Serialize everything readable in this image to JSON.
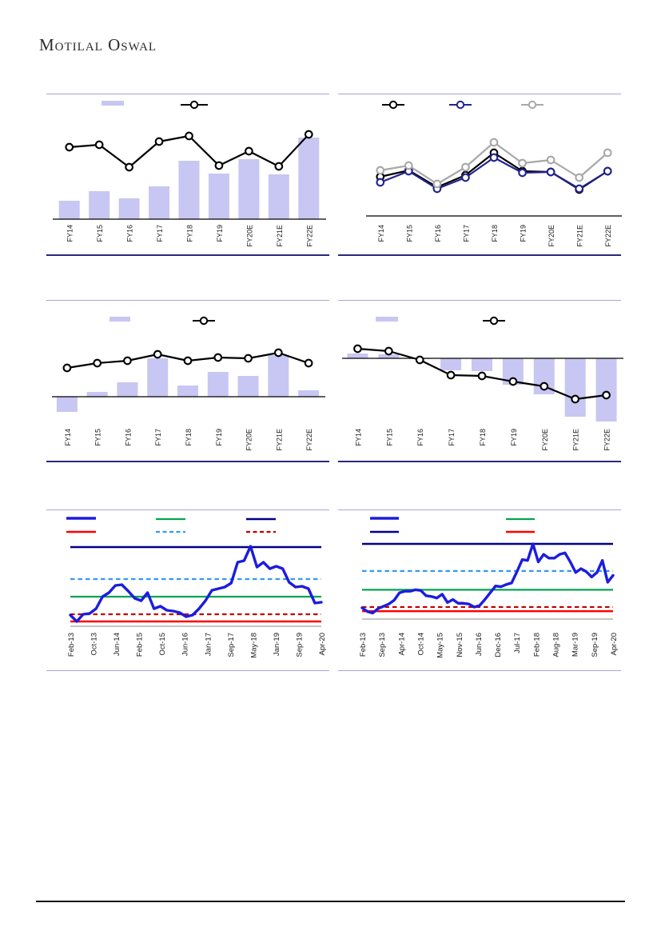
{
  "page": {
    "brand_display": "Motilal Oswal"
  },
  "chart_data": [
    {
      "id": "chart-1-bar-line-fy",
      "type": "bar",
      "categories": [
        "FY14",
        "FY15",
        "FY16",
        "FY17",
        "FY18",
        "FY19",
        "FY20E",
        "FY21E",
        "FY22E"
      ],
      "series": [
        {
          "name": "bar-series",
          "kind": "bar",
          "color": "#C8C6F2",
          "values": [
            23,
            35,
            26,
            41,
            73,
            57,
            75,
            56,
            102
          ]
        },
        {
          "name": "line-series",
          "kind": "line",
          "color": "#000000",
          "marker": "circle",
          "values": [
            90,
            93,
            65,
            97,
            104,
            67,
            85,
            66,
            106
          ]
        }
      ],
      "legend": [
        {
          "swatch": "bar",
          "color": "#C8C6F2",
          "label": ""
        },
        {
          "swatch": "line-marker",
          "color": "#000000",
          "label": ""
        }
      ],
      "ylabel": "",
      "xlabel": "",
      "grid": false,
      "note": "no value axis labels visible; values in relative units"
    },
    {
      "id": "chart-2-three-lines-fy",
      "type": "line",
      "categories": [
        "FY14",
        "FY15",
        "FY16",
        "FY17",
        "FY18",
        "FY19",
        "FY20E",
        "FY21E",
        "FY22E"
      ],
      "series": [
        {
          "name": "line-black",
          "kind": "line",
          "color": "#000000",
          "marker": "circle",
          "values": [
            49,
            57,
            36,
            51,
            79,
            56,
            55,
            33,
            56
          ]
        },
        {
          "name": "line-navy",
          "kind": "line",
          "color": "#23238F",
          "marker": "circle",
          "values": [
            42,
            56,
            34,
            48,
            73,
            54,
            55,
            34,
            56
          ]
        },
        {
          "name": "line-gray",
          "kind": "line",
          "color": "#A8A8A8",
          "marker": "circle",
          "values": [
            57,
            63,
            40,
            61,
            92,
            66,
            70,
            48,
            79
          ]
        }
      ],
      "legend": [
        {
          "swatch": "line-marker",
          "color": "#000000",
          "label": ""
        },
        {
          "swatch": "line-marker",
          "color": "#23238F",
          "label": ""
        },
        {
          "swatch": "line-marker",
          "color": "#A8A8A8",
          "label": ""
        }
      ],
      "ylabel": "",
      "xlabel": "",
      "grid": false,
      "note": "no value axis labels visible; values in relative units"
    },
    {
      "id": "chart-3-bar-line-fy",
      "type": "bar",
      "categories": [
        "FY14",
        "FY15",
        "FY16",
        "FY17",
        "FY18",
        "FY19",
        "FY20E",
        "FY21E",
        "FY22E"
      ],
      "series": [
        {
          "name": "bar-series",
          "kind": "bar",
          "color": "#C8C6F2",
          "values": [
            -19,
            6,
            18,
            48,
            14,
            31,
            26,
            52,
            8
          ]
        },
        {
          "name": "line-series",
          "kind": "line",
          "color": "#000000",
          "marker": "circle",
          "values": [
            36,
            42,
            45,
            53,
            45,
            49,
            48,
            55,
            42
          ]
        }
      ],
      "legend": [
        {
          "swatch": "bar",
          "color": "#C8C6F2",
          "label": ""
        },
        {
          "swatch": "line-marker",
          "color": "#000000",
          "label": ""
        }
      ],
      "ylabel": "",
      "xlabel": "",
      "grid": false,
      "note": "zero line shown; values in relative units"
    },
    {
      "id": "chart-4-bar-line-fy",
      "type": "bar",
      "categories": [
        "FY14",
        "FY15",
        "FY16",
        "FY17",
        "FY18",
        "FY19",
        "FY20E",
        "FY21E",
        "FY22E"
      ],
      "series": [
        {
          "name": "bar-series",
          "kind": "bar",
          "color": "#C8C6F2",
          "values": [
            6,
            5,
            -1,
            -15,
            -16,
            -33,
            -45,
            -73,
            -79
          ]
        },
        {
          "name": "line-series",
          "kind": "line",
          "color": "#000000",
          "marker": "circle",
          "values": [
            12,
            9,
            -2,
            -21,
            -22,
            -29,
            -35,
            -51,
            -46
          ]
        }
      ],
      "legend": [
        {
          "swatch": "bar",
          "color": "#C8C6F2",
          "label": ""
        },
        {
          "swatch": "line-marker",
          "color": "#000000",
          "label": ""
        }
      ],
      "ylabel": "",
      "xlabel": "",
      "grid": false,
      "note": "zero line shown; values in relative units"
    },
    {
      "id": "chart-5-timeseries-bands",
      "type": "line",
      "x_labels": [
        "Feb-13",
        "Oct-13",
        "Jun-14",
        "Feb-15",
        "Oct-15",
        "Jun-16",
        "Jan-17",
        "Sep-17",
        "May-18",
        "Jan-19",
        "Sep-19",
        "Apr-20"
      ],
      "series": [
        {
          "name": "price-series",
          "kind": "dense-line",
          "color": "#1C1CDF",
          "width": 3.4,
          "values": [
            14,
            6,
            15,
            16,
            22,
            37,
            42,
            51,
            52,
            44,
            35,
            32,
            42,
            22,
            25,
            20,
            19,
            17,
            12,
            14,
            22,
            32,
            45,
            47,
            49,
            54,
            80,
            82,
            100,
            74,
            80,
            72,
            75,
            72,
            55,
            49,
            50,
            47,
            29,
            30
          ]
        }
      ],
      "ref_lines": [
        {
          "name": "navy-line",
          "value": 99,
          "color": "#00008B",
          "style": "solid",
          "width": 2.6
        },
        {
          "name": "light-blue-dashed-line",
          "value": 59,
          "color": "#3399F0",
          "style": "dashed",
          "width": 2.2
        },
        {
          "name": "green-line",
          "value": 37,
          "color": "#00A551",
          "style": "solid",
          "width": 2.2
        },
        {
          "name": "dark-red-dashed-line",
          "value": 15,
          "color": "#C00000",
          "style": "dashed",
          "width": 2.2
        },
        {
          "name": "red-line",
          "value": 6,
          "color": "#FF0000",
          "style": "solid",
          "width": 2.4
        }
      ],
      "legend": [
        {
          "swatch": "thick-line",
          "color": "#1C1CDF",
          "label": ""
        },
        {
          "swatch": "line",
          "color": "#00A551",
          "label": ""
        },
        {
          "swatch": "line",
          "color": "#00008B",
          "label": ""
        },
        {
          "swatch": "line",
          "color": "#FF0000",
          "label": ""
        },
        {
          "swatch": "dashed-line",
          "color": "#3399F0",
          "label": ""
        },
        {
          "swatch": "dashed-line",
          "color": "#C00000",
          "label": ""
        }
      ],
      "ylabel": "",
      "xlabel": "",
      "grid": false,
      "note": "no value axis labels visible; values in relative units"
    },
    {
      "id": "chart-6-timeseries-bands",
      "type": "line",
      "x_labels": [
        "Feb-13",
        "Sep-13",
        "Apr-14",
        "Oct-14",
        "May-15",
        "Nov-15",
        "Jun-16",
        "Dec-16",
        "Jul-17",
        "Feb-18",
        "Aug-18",
        "Mar-19",
        "Sep-19",
        "Apr-20"
      ],
      "series": [
        {
          "name": "price-series",
          "kind": "dense-line",
          "color": "#1C1CDF",
          "width": 3.4,
          "values": [
            15,
            10,
            8,
            14,
            17,
            20,
            25,
            35,
            37,
            37,
            39,
            38,
            31,
            30,
            28,
            33,
            22,
            26,
            21,
            21,
            20,
            16,
            18,
            26,
            35,
            44,
            43,
            46,
            48,
            63,
            79,
            78,
            100,
            76,
            86,
            81,
            81,
            86,
            88,
            76,
            62,
            67,
            63,
            56,
            62,
            78,
            49,
            58
          ]
        }
      ],
      "ref_lines": [
        {
          "name": "navy-line",
          "value": 100,
          "color": "#00008B",
          "style": "solid",
          "width": 2.6
        },
        {
          "name": "light-blue-dashed-line",
          "value": 64,
          "color": "#3399F0",
          "style": "dashed",
          "width": 2.2
        },
        {
          "name": "green-line",
          "value": 39,
          "color": "#00A551",
          "style": "solid",
          "width": 2.2
        },
        {
          "name": "dark-red-dashed-line",
          "value": 16,
          "color": "#C00000",
          "style": "dashed",
          "width": 2.2
        },
        {
          "name": "red-line",
          "value": 10.5,
          "color": "#FF0000",
          "style": "solid",
          "width": 2.4
        }
      ],
      "legend": [
        {
          "swatch": "thick-line",
          "color": "#1C1CDF",
          "label": ""
        },
        {
          "swatch": "line",
          "color": "#00A551",
          "label": ""
        },
        {
          "swatch": "line",
          "color": "#00008B",
          "label": ""
        },
        {
          "swatch": "line",
          "color": "#FF0000",
          "label": ""
        }
      ],
      "ylabel": "",
      "xlabel": "",
      "grid": false,
      "note": "no value axis labels visible; values in relative units"
    }
  ]
}
